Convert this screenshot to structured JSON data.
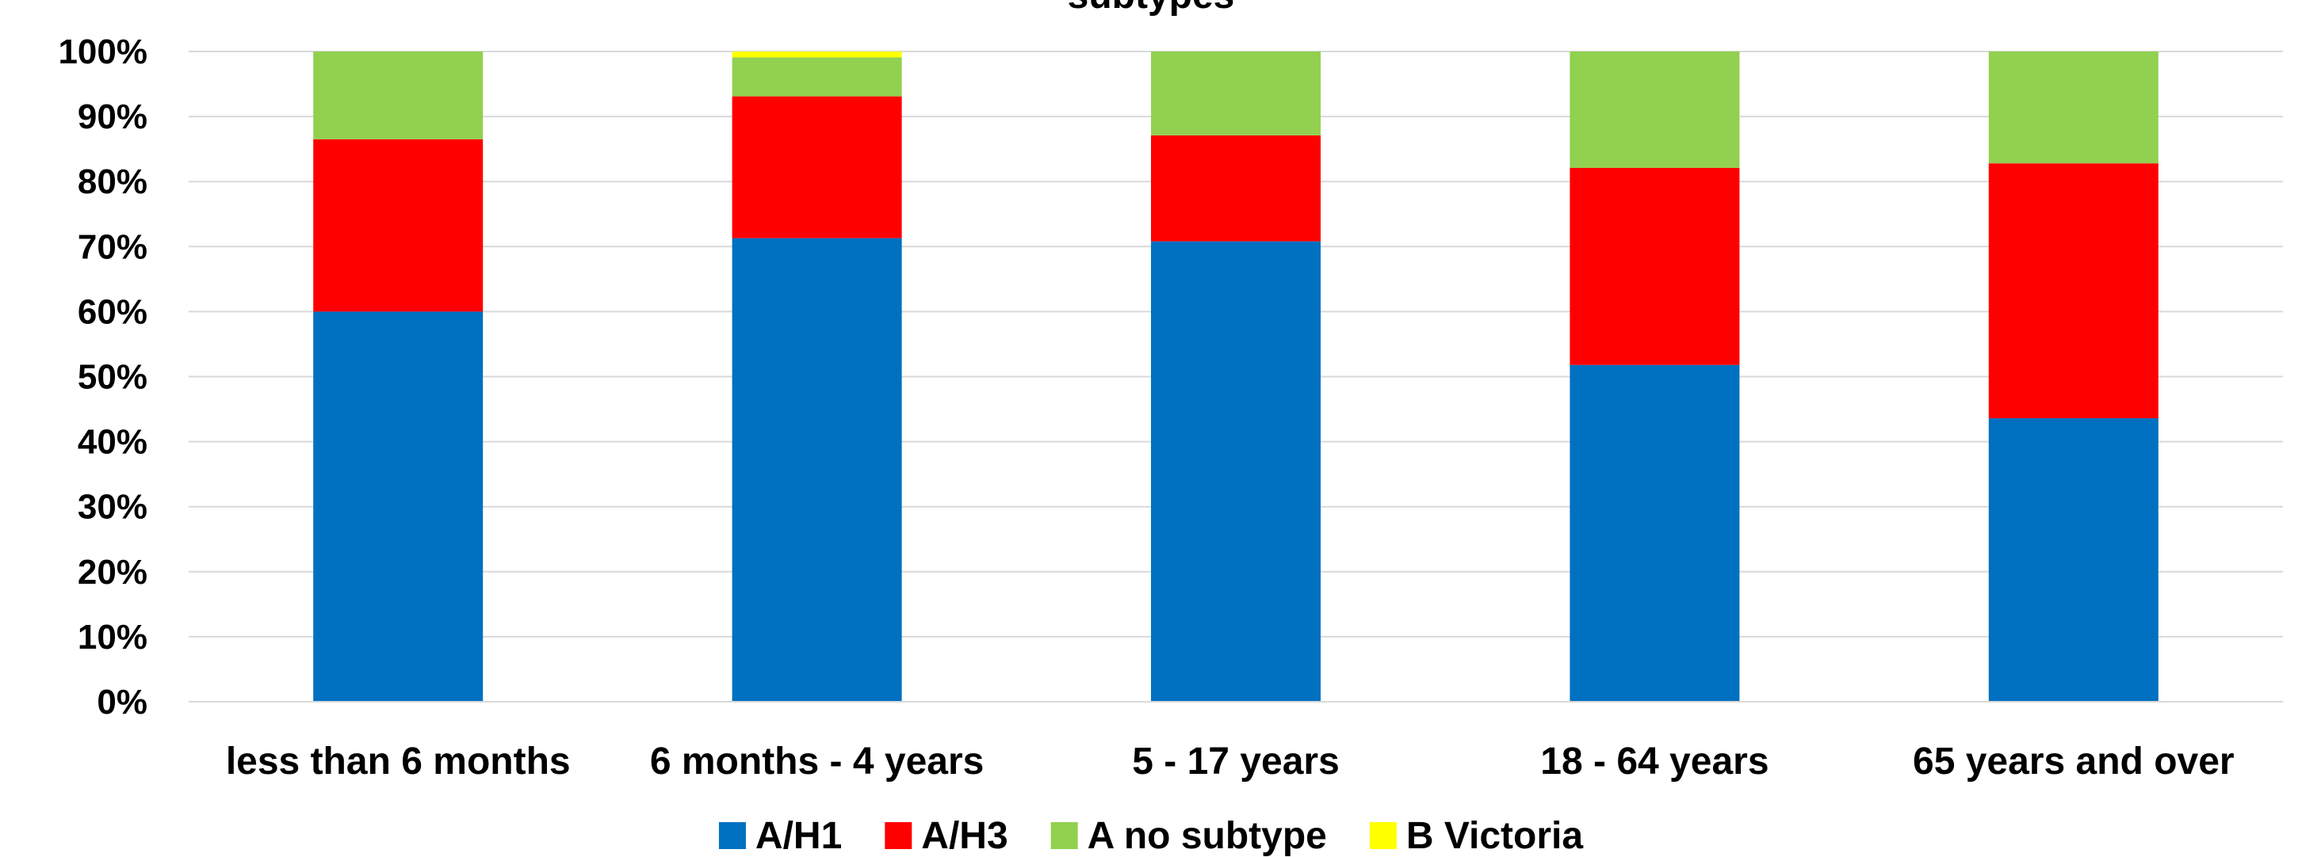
{
  "chart_data": {
    "type": "bar",
    "stacked": true,
    "title": "subtypes",
    "categories": [
      "less than 6 months",
      "6 months - 4 years",
      "5 - 17 years",
      "18 - 64 years",
      "65 years and over"
    ],
    "series": [
      {
        "name": "A/H1",
        "color": "#0070C0",
        "values": [
          60.0,
          71.3,
          70.8,
          51.8,
          43.6
        ]
      },
      {
        "name": "A/H3",
        "color": "#FF0000",
        "values": [
          26.5,
          21.8,
          16.3,
          30.3,
          39.2
        ]
      },
      {
        "name": "A no subtype",
        "color": "#92D050",
        "values": [
          13.5,
          6.0,
          12.9,
          17.9,
          17.2
        ]
      },
      {
        "name": "B Victoria",
        "color": "#FFFF00",
        "values": [
          0.0,
          0.9,
          0.0,
          0.0,
          0.0
        ]
      }
    ],
    "ylim": [
      0,
      100
    ],
    "y_ticks": [
      "0%",
      "10%",
      "20%",
      "30%",
      "40%",
      "50%",
      "60%",
      "70%",
      "80%",
      "90%",
      "100%"
    ],
    "grid": true,
    "legend_position": "bottom",
    "xlabel": "",
    "ylabel": ""
  }
}
